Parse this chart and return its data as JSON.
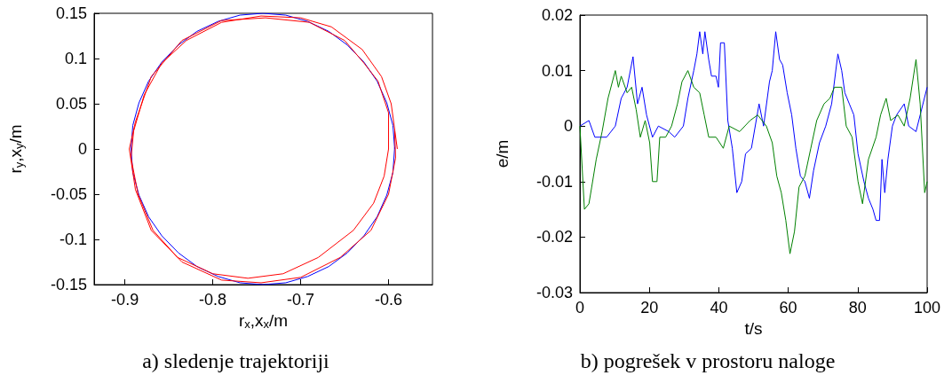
{
  "chart_data": [
    {
      "type": "line",
      "xlabel": "r$_{x}$,x$_{x}$/m",
      "ylabel": "r$_{y}$,x$_{y}$/m",
      "annotations": [
        "a) sledenje trajektoriji"
      ],
      "xlim": [
        -0.935,
        -0.55
      ],
      "ylim": [
        -0.15,
        0.15
      ],
      "xticks": [
        -0.9,
        -0.8,
        -0.7,
        -0.6
      ],
      "yticks": [
        -0.15,
        -0.1,
        -0.05,
        0,
        0.05,
        0.1,
        0.15
      ],
      "series": [
        {
          "color": "#0000ff",
          "x": [
            -0.593,
            -0.595,
            -0.602,
            -0.613,
            -0.628,
            -0.647,
            -0.668,
            -0.692,
            -0.717,
            -0.743,
            -0.769,
            -0.794,
            -0.818,
            -0.839,
            -0.858,
            -0.873,
            -0.884,
            -0.891,
            -0.893,
            -0.891,
            -0.884,
            -0.873,
            -0.858,
            -0.839,
            -0.818,
            -0.794,
            -0.769,
            -0.743,
            -0.717,
            -0.692,
            -0.668,
            -0.647,
            -0.628,
            -0.613,
            -0.602,
            -0.595,
            -0.593
          ],
          "values": [
            0,
            0.026,
            0.051,
            0.075,
            0.096,
            0.115,
            0.13,
            0.141,
            0.148,
            0.15,
            0.148,
            0.141,
            0.13,
            0.115,
            0.096,
            0.075,
            0.051,
            0.026,
            0,
            -0.026,
            -0.051,
            -0.075,
            -0.096,
            -0.115,
            -0.13,
            -0.141,
            -0.148,
            -0.15,
            -0.148,
            -0.141,
            -0.13,
            -0.115,
            -0.096,
            -0.075,
            -0.051,
            -0.026,
            0.002
          ]
        },
        {
          "color": "#ff0000",
          "x": [
            -0.59,
            -0.597,
            -0.608,
            -0.63,
            -0.665,
            -0.7,
            -0.745,
            -0.79,
            -0.83,
            -0.858,
            -0.878,
            -0.89,
            -0.893,
            -0.885,
            -0.868,
            -0.84,
            -0.8,
            -0.76,
            -0.72,
            -0.68,
            -0.64,
            -0.617,
            -0.605,
            -0.6,
            -0.6,
            -0.612,
            -0.628,
            -0.65,
            -0.69,
            -0.74,
            -0.79,
            -0.835,
            -0.87,
            -0.888,
            -0.895,
            -0.888,
            -0.87,
            -0.835,
            -0.79,
            -0.745,
            -0.7,
            -0.655,
            -0.62,
            -0.6,
            -0.592,
            -0.593
          ],
          "values": [
            0,
            0.05,
            0.08,
            0.11,
            0.135,
            0.145,
            0.147,
            0.14,
            0.12,
            0.095,
            0.06,
            0.02,
            -0.01,
            -0.05,
            -0.09,
            -0.12,
            -0.138,
            -0.143,
            -0.138,
            -0.12,
            -0.09,
            -0.06,
            -0.03,
            0,
            0.04,
            0.075,
            0.095,
            0.12,
            0.14,
            0.145,
            0.142,
            0.12,
            0.08,
            0.03,
            0,
            -0.045,
            -0.09,
            -0.125,
            -0.145,
            -0.148,
            -0.142,
            -0.12,
            -0.09,
            -0.05,
            -0.01,
            0.02
          ]
        }
      ]
    },
    {
      "type": "line",
      "xlabel": "t/s",
      "ylabel": "e/m",
      "annotations": [
        "b) pogrešek v prostoru naloge"
      ],
      "xlim": [
        0,
        100
      ],
      "ylim": [
        -0.03,
        0.02
      ],
      "xticks": [
        0,
        20,
        40,
        60,
        80,
        100
      ],
      "yticks": [
        -0.03,
        -0.02,
        -0.01,
        0,
        0.01,
        0.02
      ],
      "series": [
        {
          "color": "#0000ff",
          "x": [
            0,
            2.6,
            4.3,
            7.7,
            10.2,
            11.9,
            13.6,
            15.3,
            16.6,
            17.9,
            19.2,
            20.9,
            22.6,
            25.6,
            27.3,
            29.8,
            31.1,
            32.8,
            33.7,
            34.5,
            35.4,
            36,
            37.1,
            37.9,
            39.2,
            39.9,
            40.5,
            41.6,
            42.6,
            43.9,
            45.2,
            46.6,
            47.7,
            49.4,
            51.6,
            52.9,
            54.6,
            55.4,
            56.4,
            57.5,
            58.4,
            59.7,
            61,
            62.2,
            63.5,
            64.8,
            66.1,
            67.3,
            69,
            70.8,
            72.5,
            74.3,
            75.4,
            76.3,
            77.6,
            78.9,
            80.1,
            81.8,
            83.1,
            84.4,
            85.3,
            86.3,
            87,
            87.8,
            88.7,
            90,
            91.2,
            93.4,
            94.7,
            96.8,
            98,
            100
          ],
          "values": [
            0,
            0.001,
            -0.002,
            -0.002,
            0,
            0.005,
            0.007,
            0.0125,
            0.004,
            0.007,
            0.002,
            -0.002,
            0,
            -0.001,
            -0.002,
            0,
            0.005,
            0.01,
            0.013,
            0.017,
            0.013,
            0.017,
            0.012,
            0.009,
            0.009,
            0.007,
            0.015,
            0.015,
            0.001,
            -0.004,
            -0.012,
            -0.01,
            -0.005,
            -0.004,
            0.004,
            0,
            0.008,
            0.01,
            0.017,
            0.012,
            0.011,
            0.006,
            0.002,
            -0.004,
            -0.009,
            -0.01,
            -0.013,
            -0.008,
            -0.003,
            0,
            0.004,
            0.013,
            0.01,
            0.006,
            0.004,
            0.002,
            -0.005,
            -0.01,
            -0.013,
            -0.015,
            -0.017,
            -0.017,
            -0.006,
            -0.012,
            -0.006,
            0,
            0.002,
            0.004,
            0,
            -0.001,
            0.002,
            0.007
          ]
        },
        {
          "color": "#008000",
          "x": [
            0,
            1.3,
            2.6,
            3.4,
            4.7,
            6.4,
            8.1,
            10.2,
            11.1,
            11.9,
            13.6,
            14.9,
            16.2,
            17.4,
            18.8,
            20.1,
            20.9,
            22.2,
            23,
            24.7,
            26.4,
            28.1,
            29.4,
            31.1,
            32.8,
            34.5,
            35.8,
            37.1,
            39.2,
            41.3,
            43,
            46,
            49,
            51.2,
            53.7,
            55.4,
            56.7,
            58,
            59.3,
            60.5,
            61.8,
            63.1,
            64.8,
            66.5,
            68.2,
            70.3,
            72,
            73.3,
            75.4,
            76.7,
            78.4,
            80.1,
            81.4,
            83.1,
            85.3,
            86.6,
            88.2,
            89.5,
            91.6,
            93.4,
            95.1,
            96.8,
            98,
            99.3,
            100
          ],
          "values": [
            0,
            -0.015,
            -0.014,
            -0.011,
            -0.006,
            -0.001,
            0.005,
            0.01,
            0.007,
            0.009,
            0.006,
            0.007,
            0.003,
            -0.002,
            0.001,
            -0.003,
            -0.01,
            -0.01,
            -0.002,
            -0.002,
            0,
            0.004,
            0.008,
            0.01,
            0.007,
            0.006,
            0.002,
            -0.002,
            -0.002,
            -0.004,
            0,
            -0.001,
            0.001,
            0.002,
            0,
            -0.003,
            -0.009,
            -0.012,
            -0.017,
            -0.023,
            -0.019,
            -0.011,
            -0.009,
            -0.004,
            0.001,
            0.004,
            0.005,
            0.007,
            0.007,
            0,
            -0.002,
            -0.01,
            -0.014,
            -0.006,
            -0.002,
            0.002,
            0.005,
            0.001,
            0.002,
            0,
            0.005,
            0.012,
            0.004,
            -0.012,
            -0.01
          ]
        }
      ]
    }
  ]
}
